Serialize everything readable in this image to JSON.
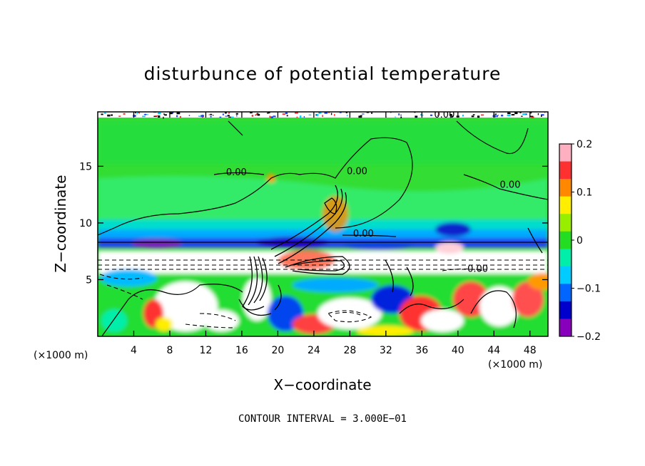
{
  "chart_data": {
    "type": "heatmap",
    "title": "disturbunce of potential temperature",
    "xlabel": "X−coordinate",
    "ylabel": "Z−coordinate",
    "x_unit": "(×1000 m)",
    "y_unit": "(×1000 m)",
    "xlim": [
      0,
      50
    ],
    "ylim": [
      0,
      19.8
    ],
    "x_ticks": [
      4,
      8,
      12,
      16,
      20,
      24,
      28,
      32,
      36,
      40,
      44,
      48
    ],
    "y_ticks": [
      5,
      10,
      15
    ],
    "colorbar": {
      "min": -0.2,
      "max": 0.2,
      "ticks": [
        0.2,
        0.1,
        0,
        -0.1,
        -0.2
      ],
      "tick_labels": [
        "0.2",
        "0.1",
        "0",
        "−0.1",
        "−0.2"
      ],
      "colors": [
        "#ffb0c0",
        "#ff3030",
        "#ff8800",
        "#ffee00",
        "#99ee00",
        "#22dd22",
        "#00eeaa",
        "#00ccff",
        "#0066ff",
        "#0000cc",
        "#8800bb"
      ]
    },
    "contour_labels": [
      {
        "x": 15.4,
        "z": 14.2,
        "text": "0.00"
      },
      {
        "x": 28.8,
        "z": 14.3,
        "text": "0.00"
      },
      {
        "x": 45.8,
        "z": 13.1,
        "text": "0.00"
      },
      {
        "x": 29.5,
        "z": 8.8,
        "text": "0.00"
      },
      {
        "x": 38.5,
        "z": 19.3,
        "text": "0.00"
      },
      {
        "x": 42.2,
        "z": 5.7,
        "text": "0.00"
      }
    ],
    "footnote": "CONTOUR INTERVAL = 3.000E−01"
  }
}
